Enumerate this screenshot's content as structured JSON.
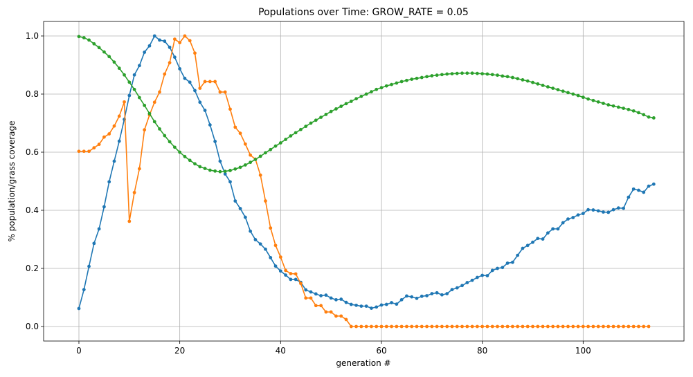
{
  "chart_data": {
    "type": "line",
    "title": "Populations over Time: GROW_RATE = 0.05",
    "xlabel": "generation #",
    "ylabel": "% population/grass coverage",
    "xlim": [
      -7.0,
      120.0
    ],
    "ylim": [
      -0.05,
      1.05
    ],
    "xticks": [
      0,
      20,
      40,
      60,
      80,
      100
    ],
    "yticks": [
      0.0,
      0.2,
      0.4,
      0.6,
      0.8,
      1.0
    ],
    "xtick_labels": [
      "0",
      "20",
      "40",
      "60",
      "80",
      "100"
    ],
    "ytick_labels": [
      "0.0",
      "0.2",
      "0.4",
      "0.6",
      "0.8",
      "1.0"
    ],
    "grid": true,
    "series": [
      {
        "name": "series-blue",
        "color": "#1f77b4",
        "x_start": 0,
        "values": [
          0.062,
          0.127,
          0.207,
          0.286,
          0.336,
          0.412,
          0.498,
          0.569,
          0.638,
          0.713,
          0.795,
          0.866,
          0.898,
          0.944,
          0.966,
          1.0,
          0.986,
          0.982,
          0.961,
          0.927,
          0.887,
          0.854,
          0.841,
          0.812,
          0.772,
          0.744,
          0.694,
          0.637,
          0.569,
          0.525,
          0.498,
          0.432,
          0.406,
          0.376,
          0.328,
          0.299,
          0.284,
          0.266,
          0.237,
          0.208,
          0.191,
          0.177,
          0.162,
          0.162,
          0.152,
          0.126,
          0.119,
          0.112,
          0.106,
          0.108,
          0.098,
          0.092,
          0.094,
          0.083,
          0.076,
          0.073,
          0.07,
          0.07,
          0.063,
          0.067,
          0.074,
          0.076,
          0.082,
          0.077,
          0.092,
          0.105,
          0.102,
          0.097,
          0.104,
          0.106,
          0.113,
          0.116,
          0.109,
          0.113,
          0.127,
          0.133,
          0.141,
          0.151,
          0.159,
          0.169,
          0.176,
          0.175,
          0.193,
          0.2,
          0.203,
          0.218,
          0.221,
          0.245,
          0.269,
          0.279,
          0.29,
          0.303,
          0.301,
          0.322,
          0.336,
          0.336,
          0.357,
          0.37,
          0.375,
          0.384,
          0.389,
          0.402,
          0.401,
          0.398,
          0.394,
          0.393,
          0.402,
          0.408,
          0.407,
          0.445,
          0.473,
          0.469,
          0.462,
          0.483,
          0.49
        ]
      },
      {
        "name": "series-orange",
        "color": "#ff7f0e",
        "x_start": 0,
        "values": [
          0.603,
          0.603,
          0.603,
          0.615,
          0.627,
          0.652,
          0.663,
          0.69,
          0.724,
          0.773,
          0.362,
          0.461,
          0.543,
          0.677,
          0.728,
          0.772,
          0.807,
          0.869,
          0.908,
          0.989,
          0.977,
          1.0,
          0.984,
          0.941,
          0.82,
          0.843,
          0.843,
          0.843,
          0.807,
          0.807,
          0.748,
          0.686,
          0.665,
          0.628,
          0.59,
          0.576,
          0.521,
          0.432,
          0.339,
          0.279,
          0.239,
          0.193,
          0.182,
          0.181,
          0.148,
          0.098,
          0.098,
          0.072,
          0.072,
          0.05,
          0.05,
          0.036,
          0.036,
          0.024,
          0.0,
          0.0,
          0.0,
          0.0,
          0.0,
          0.0,
          0.0,
          0.0,
          0.0,
          0.0,
          0.0,
          0.0,
          0.0,
          0.0,
          0.0,
          0.0,
          0.0,
          0.0,
          0.0,
          0.0,
          0.0,
          0.0,
          0.0,
          0.0,
          0.0,
          0.0,
          0.0,
          0.0,
          0.0,
          0.0,
          0.0,
          0.0,
          0.0,
          0.0,
          0.0,
          0.0,
          0.0,
          0.0,
          0.0,
          0.0,
          0.0,
          0.0,
          0.0,
          0.0,
          0.0,
          0.0,
          0.0,
          0.0,
          0.0,
          0.0,
          0.0,
          0.0,
          0.0,
          0.0,
          0.0,
          0.0,
          0.0,
          0.0,
          0.0,
          0.0
        ]
      },
      {
        "name": "series-green",
        "color": "#2ca02c",
        "x_start": 0,
        "values": [
          0.998,
          0.994,
          0.986,
          0.973,
          0.96,
          0.945,
          0.929,
          0.91,
          0.889,
          0.866,
          0.841,
          0.816,
          0.788,
          0.761,
          0.733,
          0.705,
          0.68,
          0.657,
          0.636,
          0.617,
          0.6,
          0.585,
          0.572,
          0.56,
          0.55,
          0.544,
          0.538,
          0.535,
          0.533,
          0.534,
          0.537,
          0.542,
          0.548,
          0.556,
          0.565,
          0.575,
          0.586,
          0.598,
          0.609,
          0.621,
          0.632,
          0.644,
          0.656,
          0.667,
          0.678,
          0.689,
          0.7,
          0.71,
          0.72,
          0.73,
          0.74,
          0.749,
          0.758,
          0.767,
          0.775,
          0.784,
          0.792,
          0.8,
          0.808,
          0.816,
          0.822,
          0.828,
          0.833,
          0.838,
          0.843,
          0.847,
          0.851,
          0.854,
          0.857,
          0.86,
          0.863,
          0.865,
          0.867,
          0.869,
          0.87,
          0.871,
          0.872,
          0.872,
          0.872,
          0.871,
          0.87,
          0.869,
          0.867,
          0.865,
          0.862,
          0.86,
          0.857,
          0.853,
          0.849,
          0.845,
          0.84,
          0.835,
          0.83,
          0.825,
          0.82,
          0.815,
          0.81,
          0.805,
          0.8,
          0.795,
          0.789,
          0.783,
          0.778,
          0.773,
          0.768,
          0.763,
          0.759,
          0.755,
          0.751,
          0.747,
          0.742,
          0.736,
          0.729,
          0.721,
          0.718
        ]
      }
    ]
  }
}
